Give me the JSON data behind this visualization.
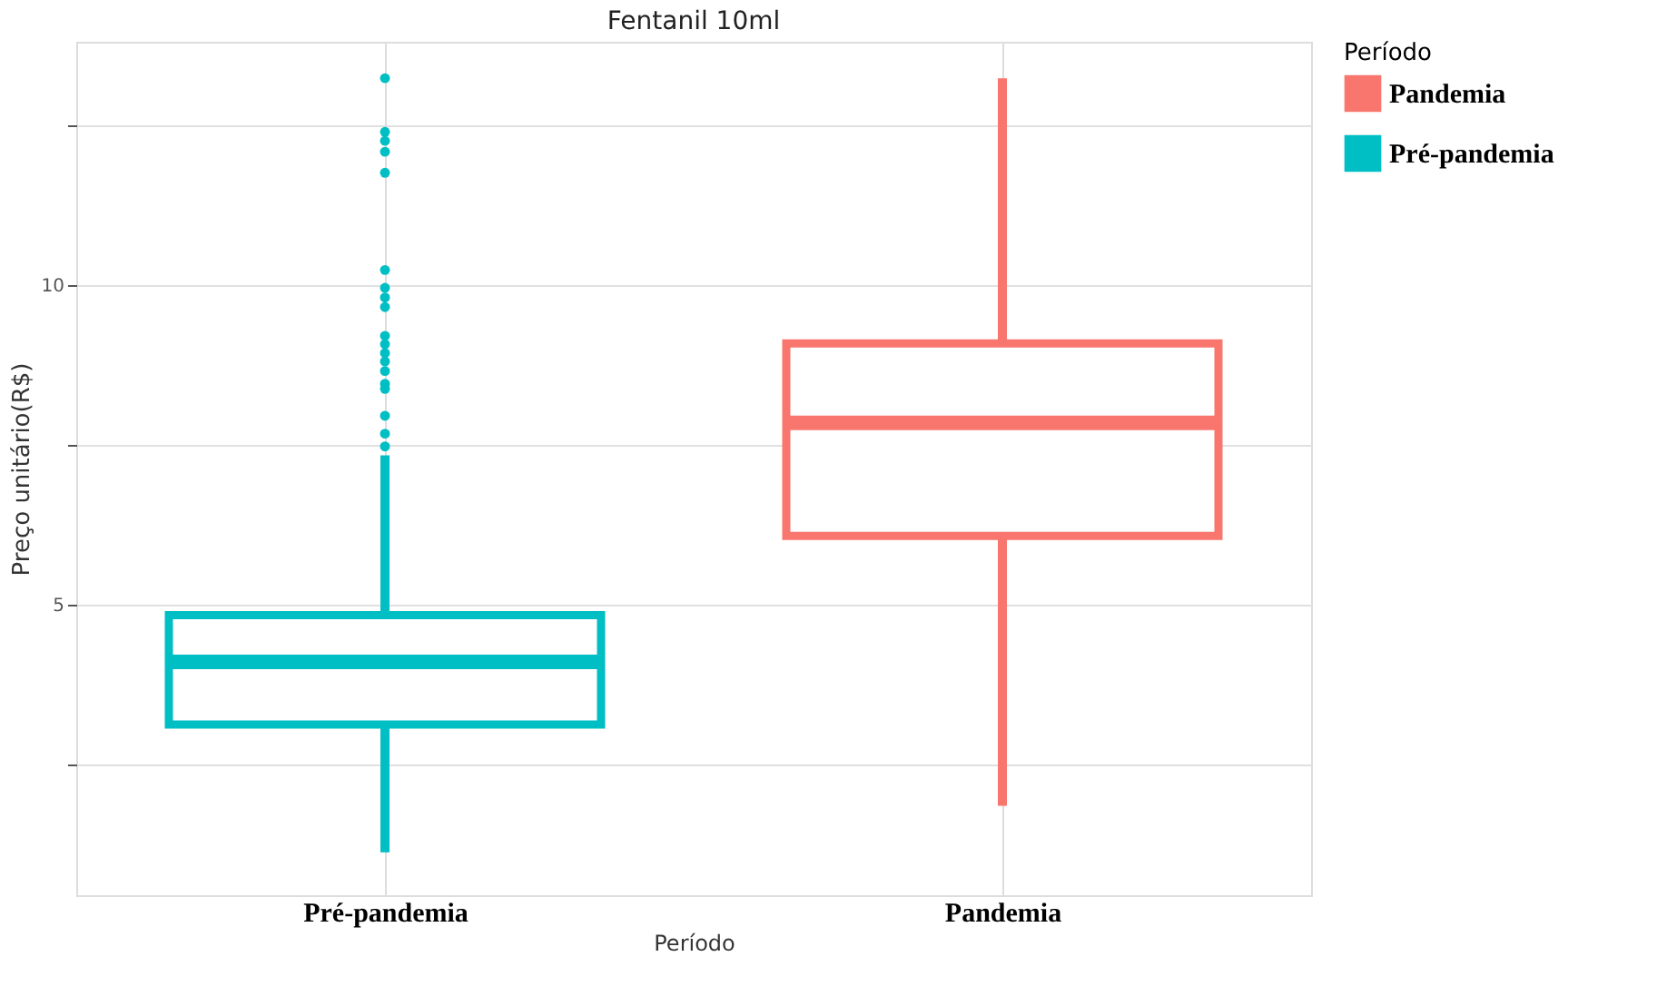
{
  "chart_data": {
    "type": "box",
    "title": "Fentanil 10ml",
    "xlabel": "Período",
    "ylabel": "Preço unitário(R$)",
    "legend_title": "Período",
    "categories": [
      "Pré-pandemia",
      "Pandemia"
    ],
    "series": [
      {
        "name": "Pandemia",
        "color": "#f8766d",
        "boxes": [
          null,
          {
            "low": 1.85,
            "q1": 6.07,
            "median": 7.84,
            "q3": 9.08,
            "high": 13.23
          }
        ]
      },
      {
        "name": "Pré-pandemia",
        "color": "#00bfc4",
        "boxes": [
          {
            "low": 1.12,
            "q1": 3.12,
            "median": 4.1,
            "q3": 4.83,
            "high": 7.33,
            "outliers": [
              7.47,
              7.67,
              7.95,
              8.37,
              8.45,
              8.65,
              8.8,
              8.93,
              9.07,
              9.2,
              9.65,
              9.8,
              9.95,
              10.23,
              11.75,
              12.08,
              12.25,
              12.39,
              13.23
            ]
          },
          null
        ]
      }
    ],
    "ylim": [
      0.45,
      13.8
    ],
    "yticks": [
      {
        "value": 2.5,
        "label": null
      },
      5,
      {
        "value": 7.5,
        "label": null
      },
      10,
      {
        "value": 12.5,
        "label": null
      }
    ],
    "grid": true,
    "legend": "right"
  }
}
